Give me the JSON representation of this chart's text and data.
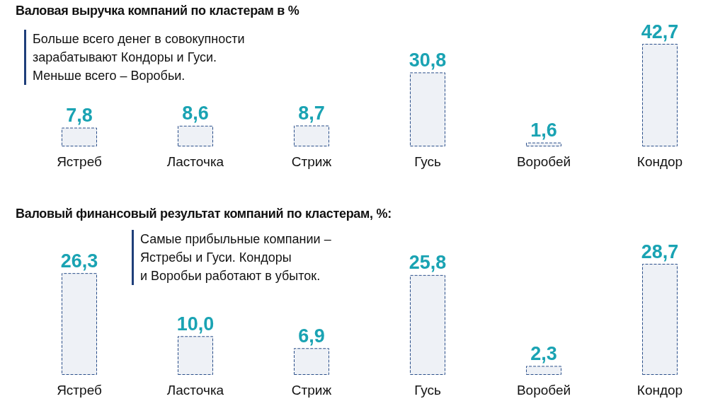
{
  "chart_data": [
    {
      "type": "bar",
      "title": "Валовая выручка компаний по кластерам в %",
      "annotations": [
        "Больше всего денег в совокупности\nзарабатывают Кондоры и Гуси.\nМеньше всего – Воробьи."
      ],
      "categories": [
        "Ястреб",
        "Ласточка",
        "Стриж",
        "Гусь",
        "Воробей",
        "Кондор"
      ],
      "values": [
        7.8,
        8.6,
        8.7,
        30.8,
        1.6,
        42.7
      ],
      "value_labels": [
        "7,8",
        "8,6",
        "8,7",
        "30,8",
        "1,6",
        "42,7"
      ],
      "color": "#2b4f8a",
      "line_style": "dashed",
      "grid": false
    },
    {
      "type": "bar",
      "title": "Валовый финансовый результат компаний по кластерам, %:",
      "annotations": [
        "Самые прибыльные компании –\nЯстребы и Гуси. Кондоры\nи Воробьи работают в убыток."
      ],
      "categories": [
        "Ястреб",
        "Ласточка",
        "Стриж",
        "Гусь",
        "Воробей",
        "Кондор"
      ],
      "values": [
        26.3,
        10.0,
        6.9,
        25.8,
        2.3,
        28.7
      ],
      "value_labels": [
        "26,3",
        "10,0",
        "6,9",
        "25,8",
        "2,3",
        "28,7"
      ],
      "color": "#2b4f8a",
      "line_style": "dashed",
      "grid": false
    }
  ]
}
